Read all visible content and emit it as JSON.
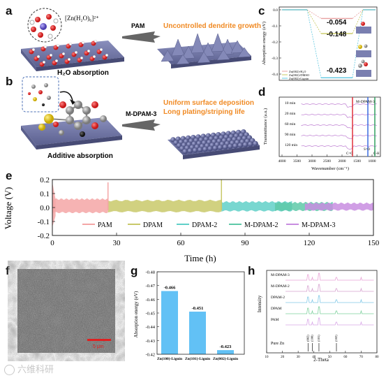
{
  "panels": {
    "a": "a",
    "b": "b",
    "c": "c",
    "d": "d",
    "e": "e",
    "f": "f",
    "g": "g",
    "h": "h"
  },
  "schematic": {
    "ion_formula": "[Zn(H₂O)₆]²⁺",
    "arrow_top": "PAM",
    "arrow_bottom": "M-DPAM-3",
    "result_top": "Uncontrolled dendrite growth",
    "result_bottom_1": "Uniform surface deposition",
    "result_bottom_2": "Long plating/striping life",
    "caption_top": "H₂O absorption",
    "caption_bottom": "Additive absorption",
    "colors": {
      "orange": "#f08a24",
      "slab": "#6f74a8",
      "dendrite": "#777ba5"
    }
  },
  "panel_c": {
    "ylabel": "Absorption energy (eV)",
    "yticks": [
      "0.0",
      "-0.1",
      "-0.2",
      "-0.3",
      "-0.4"
    ],
    "legend": [
      "Zn(002)-H₂O",
      "Zn(002)-DMSO",
      "Zn(002)-Lignin"
    ],
    "legend_colors": [
      "#e8a0a0",
      "#c8c860",
      "#60c8e0"
    ]
  },
  "panel_d": {
    "ylabel": "Transmittance (a.u.)",
    "xlabel": "Wavenumber (cm⁻¹)",
    "xticks": [
      "4000",
      "3500",
      "3000",
      "2500",
      "2000",
      "1500",
      "1000"
    ],
    "sample": "M-DPAM-3",
    "times": [
      "10 min",
      "20 min",
      "60 min",
      "90 min",
      "120 min"
    ],
    "peaks": [
      "C=C",
      "S=O",
      "C-H"
    ]
  },
  "panel_e": {
    "ylabel": "Voltage (V)",
    "xlabel": "Time (h)",
    "yticks": [
      "0.2",
      "0.1",
      "0.0",
      "-0.1",
      "-0.2"
    ],
    "xticks": [
      "0",
      "30",
      "60",
      "90",
      "120",
      "150"
    ],
    "legend": [
      "PAM",
      "DPAM",
      "DPAM-2",
      "M-DPAM-2",
      "M-DPAM-3"
    ],
    "colors": [
      "#f4a6a6",
      "#c9c96a",
      "#60d0c8",
      "#5ec9a8",
      "#c88de0"
    ]
  },
  "panel_f": {
    "scale_label": "5 μm"
  },
  "panel_g": {
    "ylabel": "Absorption energy (eV)",
    "yticks": [
      "-0.48",
      "-0.47",
      "-0.46",
      "-0.45",
      "-0.44",
      "-0.43",
      "-0.42"
    ]
  },
  "panel_h": {
    "ylabel": "Intensity",
    "xlabel": "2-Theta",
    "xticks": [
      "10",
      "20",
      "30",
      "40",
      "50",
      "60",
      "70",
      "80"
    ],
    "traces": [
      "M-DPAM-3",
      "M-DPAM-2",
      "DPAM-2",
      "DPAM",
      "PAM"
    ],
    "reference": "Pure Zn",
    "planes": [
      "(002)",
      "(100)",
      "(101)",
      "(102)"
    ]
  },
  "watermark": "六维科研",
  "chart_data": [
    {
      "type": "bar",
      "panel": "c",
      "ylabel": "Absorption energy (eV)",
      "ylim": [
        -0.45,
        0.0
      ],
      "series": [
        {
          "name": "Zn(002)-H₂O",
          "values": [
            -0.054
          ]
        },
        {
          "name": "Zn(002)-DMSO",
          "values": [
            -0.148
          ]
        },
        {
          "name": "Zn(002)-Lignin",
          "values": [
            -0.423
          ]
        }
      ],
      "data_labels": [
        "-0.054",
        "-0.148",
        "-0.423"
      ]
    },
    {
      "type": "bar",
      "panel": "g",
      "categories": [
        "Zn(100)-Lignin",
        "Zn(101)-Lignin",
        "Zn(002)-Lignin"
      ],
      "values": [
        -0.466,
        -0.451,
        -0.423
      ],
      "data_labels": [
        "-0.466",
        "-0.451",
        "-0.423"
      ],
      "ylabel": "Absorption energy (eV)",
      "ylim": [
        -0.42,
        -0.48
      ]
    },
    {
      "type": "line",
      "panel": "e",
      "xlabel": "Time (h)",
      "ylabel": "Voltage (V)",
      "xlim": [
        0,
        150
      ],
      "ylim": [
        -0.2,
        0.2
      ],
      "series": [
        {
          "name": "PAM",
          "x_range": [
            0,
            26
          ],
          "amplitude": 0.06
        },
        {
          "name": "DPAM",
          "x_range": [
            26,
            79
          ],
          "amplitude": 0.05
        },
        {
          "name": "DPAM-2",
          "x_range": [
            79,
            112
          ],
          "amplitude": 0.04
        },
        {
          "name": "M-DPAM-2",
          "x_range": [
            104,
            131
          ],
          "amplitude": 0.035
        },
        {
          "name": "M-DPAM-3",
          "x_range": [
            118,
            150
          ],
          "amplitude": 0.03
        }
      ]
    }
  ]
}
